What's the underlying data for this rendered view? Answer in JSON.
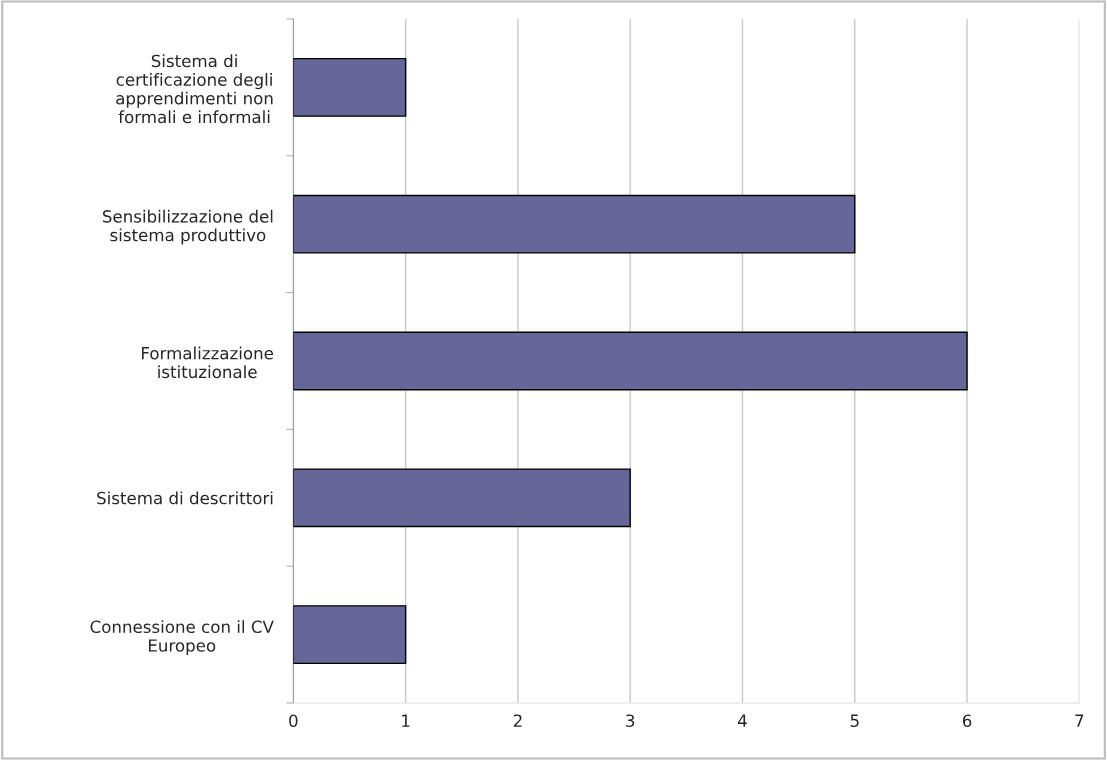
{
  "chart_data": {
    "type": "bar",
    "orientation": "horizontal",
    "categories": [
      "Sistema di\ncertificazione degli\napprendimenti non\nformali e informali",
      "Sensibilizzazione del\nsistema produttivo",
      "Formalizzazione\nistituzionale",
      "Sistema di descrittori",
      "Connessione con il CV\nEuropeo"
    ],
    "values": [
      1,
      5,
      6,
      3,
      1
    ],
    "color": "#666699",
    "xlim": [
      0,
      7
    ],
    "xticks": [
      0,
      1,
      2,
      3,
      4,
      5,
      6,
      7
    ],
    "grid": "x",
    "legend": false
  }
}
